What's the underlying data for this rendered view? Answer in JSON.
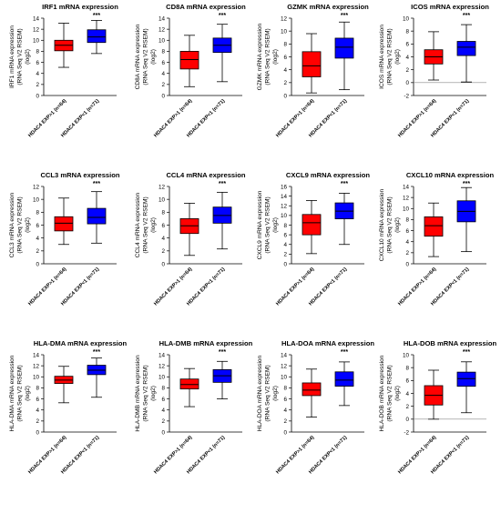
{
  "figure": {
    "ylabel_lines": [
      "mRNA expression",
      "(RNA Seq V2 RSEM)",
      "(log2)"
    ],
    "group_colors": [
      "#ff0000",
      "#0000ff"
    ],
    "group_labels": [
      "HDAC4 EXP>1 (n=64)",
      "HDAC4 EXP<1 (n=71)"
    ]
  },
  "chart_data": [
    {
      "type": "box",
      "title": "IRF1 mRNA expression",
      "ylabel_lines": [
        "IRF1 mRNA expression",
        "(RNA Seq V2 RSEM)",
        "(log2)"
      ],
      "ylim": [
        0,
        14
      ],
      "yticks": [
        "0",
        "2",
        "4",
        "6",
        "8",
        "10",
        "12",
        "14"
      ],
      "zero_line": false,
      "significance": "***",
      "categories": [
        "HDAC4 EXP>1 (n=64)",
        "HDAC4 EXP<1 (n=71)"
      ],
      "boxes": [
        {
          "min": 5.1,
          "q1": 8.1,
          "median": 9.1,
          "q3": 10.0,
          "max": 13.1
        },
        {
          "min": 7.6,
          "q1": 9.6,
          "median": 10.6,
          "q3": 11.9,
          "max": 13.6
        }
      ]
    },
    {
      "type": "box",
      "title": "CD8A mRNA expression",
      "ylabel_lines": [
        "CD8A mRNA expression",
        "(RNA Seq V2 RSEM)",
        "(log2)"
      ],
      "ylim": [
        0,
        14
      ],
      "yticks": [
        "0",
        "2",
        "4",
        "6",
        "8",
        "10",
        "12",
        "14"
      ],
      "zero_line": false,
      "significance": "***",
      "categories": [
        "HDAC4 EXP>1 (n=64)",
        "HDAC4 EXP<1 (n=71)"
      ],
      "boxes": [
        {
          "min": 1.6,
          "q1": 4.8,
          "median": 6.5,
          "q3": 8.0,
          "max": 10.9
        },
        {
          "min": 2.5,
          "q1": 7.8,
          "median": 9.1,
          "q3": 10.4,
          "max": 12.9
        }
      ]
    },
    {
      "type": "box",
      "title": "GZMK mRNA expression",
      "ylabel_lines": [
        "GZMK mRNA expression",
        "(RNA Seq V2 RSEM)",
        "(log2)"
      ],
      "ylim": [
        0,
        12
      ],
      "yticks": [
        "0",
        "2",
        "4",
        "6",
        "8",
        "10",
        "12"
      ],
      "zero_line": false,
      "significance": "***",
      "categories": [
        "HDAC4 EXP>1 (n=64)",
        "HDAC4 EXP<1 (n=71)"
      ],
      "boxes": [
        {
          "min": 0.4,
          "q1": 2.9,
          "median": 4.6,
          "q3": 6.8,
          "max": 9.6
        },
        {
          "min": 0.9,
          "q1": 5.8,
          "median": 7.5,
          "q3": 8.9,
          "max": 11.4
        }
      ]
    },
    {
      "type": "box",
      "title": "ICOS  mRNA expression",
      "ylabel_lines": [
        "ICOS mRNA expression",
        "(RNA Seq V2 RSEM)",
        "(log2)"
      ],
      "ylim": [
        -2,
        10
      ],
      "yticks": [
        "-2",
        "0",
        "2",
        "4",
        "6",
        "8",
        "10"
      ],
      "zero_line": true,
      "significance": "***",
      "categories": [
        "HDAC4 EXP>1 (n=64)",
        "HDAC4 EXP<1 (n=71)"
      ],
      "boxes": [
        {
          "min": 0.4,
          "q1": 2.9,
          "median": 4.0,
          "q3": 5.1,
          "max": 7.9
        },
        {
          "min": 0.1,
          "q1": 4.2,
          "median": 5.5,
          "q3": 6.4,
          "max": 9.0
        }
      ]
    },
    {
      "type": "box",
      "title": "CCL3 mRNA expression",
      "ylabel_lines": [
        "CCL3 mRNA expression",
        "(RNA Seq V2 RSEM)",
        "(log2)"
      ],
      "ylim": [
        0,
        12
      ],
      "yticks": [
        "0",
        "2",
        "4",
        "6",
        "8",
        "10",
        "12"
      ],
      "zero_line": false,
      "significance": "***",
      "categories": [
        "HDAC4 EXP>1 (n=64)",
        "HDAC4 EXP<1 (n=71)"
      ],
      "boxes": [
        {
          "min": 3.0,
          "q1": 5.1,
          "median": 6.3,
          "q3": 7.3,
          "max": 10.2
        },
        {
          "min": 3.2,
          "q1": 6.2,
          "median": 7.2,
          "q3": 8.6,
          "max": 11.2
        }
      ]
    },
    {
      "type": "box",
      "title": "CCL4 mRNA expression",
      "ylabel_lines": [
        "CCL4 mRNA expression",
        "(RNA Seq V2 RSEM)",
        "(log2)"
      ],
      "ylim": [
        0,
        12
      ],
      "yticks": [
        "0",
        "2",
        "4",
        "6",
        "8",
        "10",
        "12"
      ],
      "zero_line": false,
      "significance": "***",
      "categories": [
        "HDAC4 EXP>1 (n=64)",
        "HDAC4 EXP<1 (n=71)"
      ],
      "boxes": [
        {
          "min": 1.3,
          "q1": 4.7,
          "median": 5.9,
          "q3": 7.0,
          "max": 9.4
        },
        {
          "min": 2.3,
          "q1": 6.3,
          "median": 7.5,
          "q3": 8.8,
          "max": 11.1
        }
      ]
    },
    {
      "type": "box",
      "title": "CXCL9 mRNA expression",
      "ylabel_lines": [
        "CXCL9 mRNA expression",
        "(RNA Seq V2 RSEM)",
        "(log2)"
      ],
      "ylim": [
        0,
        16
      ],
      "yticks": [
        "0",
        "2",
        "4",
        "6",
        "8",
        "10",
        "12",
        "14",
        "16"
      ],
      "zero_line": false,
      "significance": "***",
      "categories": [
        "HDAC4 EXP>1 (n=64)",
        "HDAC4 EXP<1 (n=71)"
      ],
      "boxes": [
        {
          "min": 2.1,
          "q1": 6.0,
          "median": 8.5,
          "q3": 10.2,
          "max": 13.1
        },
        {
          "min": 4.0,
          "q1": 9.3,
          "median": 10.9,
          "q3": 12.6,
          "max": 14.6
        }
      ]
    },
    {
      "type": "box",
      "title": "CXCL10 mRNA expression",
      "ylabel_lines": [
        "CXCL10 mRNA expression",
        "(RNA Seq V2 RSEM)",
        "(log2)"
      ],
      "ylim": [
        0,
        14
      ],
      "yticks": [
        "0",
        "2",
        "4",
        "6",
        "8",
        "10",
        "12",
        "14"
      ],
      "zero_line": false,
      "significance": "***",
      "categories": [
        "HDAC4 EXP>1 (n=64)",
        "HDAC4 EXP<1 (n=71)"
      ],
      "boxes": [
        {
          "min": 1.3,
          "q1": 5.0,
          "median": 6.9,
          "q3": 8.5,
          "max": 11.0
        },
        {
          "min": 2.2,
          "q1": 7.6,
          "median": 9.5,
          "q3": 11.4,
          "max": 13.8
        }
      ]
    },
    {
      "type": "box",
      "title": "HLA-DMA mRNA expression",
      "ylabel_lines": [
        "HLA-DMA mRNA expression",
        "(RNA Seq V2 RSEM)",
        "(log2)"
      ],
      "ylim": [
        0,
        14
      ],
      "yticks": [
        "0",
        "2",
        "4",
        "6",
        "8",
        "10",
        "12",
        "14"
      ],
      "zero_line": false,
      "significance": "***",
      "categories": [
        "HDAC4 EXP>1 (n=64)",
        "HDAC4 EXP<1 (n=71)"
      ],
      "boxes": [
        {
          "min": 5.3,
          "q1": 8.8,
          "median": 9.4,
          "q3": 10.1,
          "max": 11.9
        },
        {
          "min": 6.3,
          "q1": 10.4,
          "median": 11.2,
          "q3": 12.1,
          "max": 13.4
        }
      ]
    },
    {
      "type": "box",
      "title": "HLA-DMB mRNA expression",
      "ylabel_lines": [
        "HLA-DMB mRNA expression",
        "(RNA Seq V2 RSEM)",
        "(log2)"
      ],
      "ylim": [
        0,
        14
      ],
      "yticks": [
        "0",
        "2",
        "4",
        "6",
        "8",
        "10",
        "12",
        "14"
      ],
      "zero_line": false,
      "significance": "***",
      "categories": [
        "HDAC4 EXP>1 (n=64)",
        "HDAC4 EXP<1 (n=71)"
      ],
      "boxes": [
        {
          "min": 4.6,
          "q1": 7.8,
          "median": 8.6,
          "q3": 9.6,
          "max": 11.5
        },
        {
          "min": 6.0,
          "q1": 9.0,
          "median": 10.2,
          "q3": 11.3,
          "max": 12.8
        }
      ]
    },
    {
      "type": "box",
      "title": "HLA-DOA mRNA expression",
      "ylabel_lines": [
        "HLA-DOA mRNA expression",
        "(RNA Seq V2 RSEM)",
        "(log2)"
      ],
      "ylim": [
        0,
        14
      ],
      "yticks": [
        "0",
        "2",
        "4",
        "6",
        "8",
        "10",
        "12",
        "14"
      ],
      "zero_line": false,
      "significance": "***",
      "categories": [
        "HDAC4 EXP>1 (n=64)",
        "HDAC4 EXP<1 (n=71)"
      ],
      "boxes": [
        {
          "min": 2.7,
          "q1": 6.6,
          "median": 7.6,
          "q3": 8.9,
          "max": 11.4
        },
        {
          "min": 4.8,
          "q1": 8.3,
          "median": 9.4,
          "q3": 10.9,
          "max": 12.7
        }
      ]
    },
    {
      "type": "box",
      "title": "HLA-DOB mRNA expression",
      "ylabel_lines": [
        "HLA-DOB mRNA expression",
        "(RNA Seq V2 RSEM)",
        "(log2)"
      ],
      "ylim": [
        -2,
        10
      ],
      "yticks": [
        "-2",
        "0",
        "2",
        "4",
        "6",
        "8",
        "10"
      ],
      "zero_line": true,
      "significance": "***",
      "categories": [
        "HDAC4 EXP>1 (n=64)",
        "HDAC4 EXP<1 (n=71)"
      ],
      "boxes": [
        {
          "min": 0.0,
          "q1": 2.2,
          "median": 3.7,
          "q3": 5.2,
          "max": 7.6
        },
        {
          "min": 1.0,
          "q1": 5.1,
          "median": 6.3,
          "q3": 7.3,
          "max": 8.9
        }
      ]
    }
  ]
}
